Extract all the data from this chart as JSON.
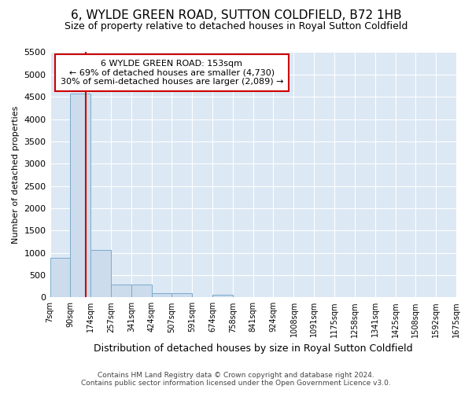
{
  "title": "6, WYLDE GREEN ROAD, SUTTON COLDFIELD, B72 1HB",
  "subtitle": "Size of property relative to detached houses in Royal Sutton Coldfield",
  "xlabel": "Distribution of detached houses by size in Royal Sutton Coldfield",
  "ylabel": "Number of detached properties",
  "footer_line1": "Contains HM Land Registry data © Crown copyright and database right 2024.",
  "footer_line2": "Contains public sector information licensed under the Open Government Licence v3.0.",
  "annotation_line1": "6 WYLDE GREEN ROAD: 153sqm",
  "annotation_line2": "← 69% of detached houses are smaller (4,730)",
  "annotation_line3": "30% of semi-detached houses are larger (2,089) →",
  "property_size": 153,
  "bar_left_edges": [
    7,
    90,
    174,
    257,
    341,
    424,
    507,
    591,
    674,
    758,
    841,
    924,
    1008,
    1091,
    1175,
    1258,
    1341,
    1425,
    1508,
    1592
  ],
  "bar_widths": [
    83,
    84,
    83,
    84,
    83,
    83,
    84,
    83,
    84,
    83,
    83,
    84,
    83,
    84,
    83,
    83,
    84,
    83,
    84,
    83
  ],
  "bar_heights": [
    880,
    4570,
    1060,
    285,
    285,
    85,
    85,
    0,
    55,
    0,
    0,
    0,
    0,
    0,
    0,
    0,
    0,
    0,
    0,
    0
  ],
  "bar_color": "#ccdcec",
  "bar_edge_color": "#7aaacb",
  "red_line_color": "#cc0000",
  "annotation_box_color": "#cc0000",
  "bg_color": "#ffffff",
  "plot_bg_color": "#dce8f4",
  "grid_color": "#ffffff",
  "tick_labels": [
    "7sqm",
    "90sqm",
    "174sqm",
    "257sqm",
    "341sqm",
    "424sqm",
    "507sqm",
    "591sqm",
    "674sqm",
    "758sqm",
    "841sqm",
    "924sqm",
    "1008sqm",
    "1091sqm",
    "1175sqm",
    "1258sqm",
    "1341sqm",
    "1425sqm",
    "1508sqm",
    "1592sqm",
    "1675sqm"
  ],
  "ylim": [
    0,
    5500
  ],
  "yticks": [
    0,
    500,
    1000,
    1500,
    2000,
    2500,
    3000,
    3500,
    4000,
    4500,
    5000,
    5500
  ],
  "title_fontsize": 11,
  "subtitle_fontsize": 9,
  "ylabel_fontsize": 8,
  "xlabel_fontsize": 9,
  "footer_fontsize": 6.5,
  "annotation_fontsize": 8
}
